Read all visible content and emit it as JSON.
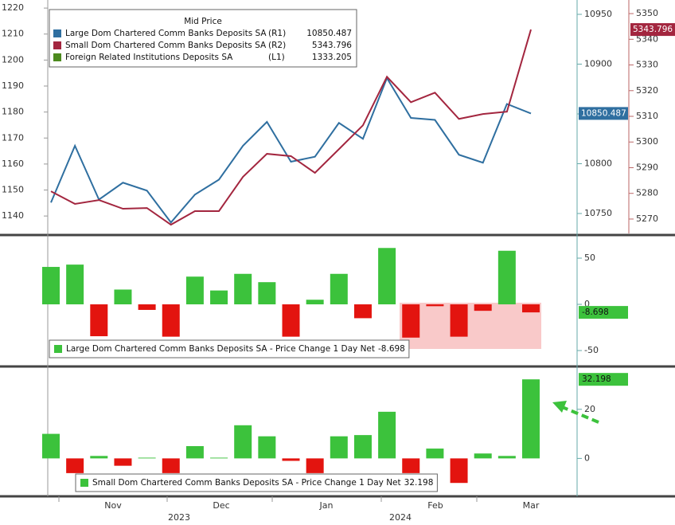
{
  "chart_data": [
    {
      "type": "line",
      "title": "Mid Price",
      "ylim": [
        1133.3,
        1223.1
      ],
      "yticks": [
        1140,
        1150,
        1160,
        1170,
        1180,
        1190,
        1200,
        1210,
        1220
      ],
      "y2lim": [
        10730,
        10964.4
      ],
      "y2ticks": [
        10750,
        10800,
        10850,
        10900,
        10950
      ],
      "y3lim": [
        5264.4,
        5355.3
      ],
      "y3ticks": [
        5270,
        5280,
        5290,
        5300,
        5310,
        5320,
        5330,
        5340,
        5350
      ],
      "series": [
        {
          "name": "Large Dom Chartered Comm Banks Deposits SA",
          "axis_label": "(R1)",
          "axis": "y2",
          "color": "#2f6fa0",
          "values": [
            10761,
            10818,
            10764,
            10781,
            10773,
            10741,
            10769,
            10784,
            10818,
            10842,
            10802,
            10807,
            10841,
            10825,
            10886,
            10846,
            10844,
            10809,
            10801,
            10860,
            10850.487
          ]
        },
        {
          "name": "Small Dom Chartered Comm Banks Deposits SA",
          "axis_label": "(R2)",
          "axis": "y3",
          "color": "#a3263f",
          "values": [
            5280.8,
            5275.9,
            5277.4,
            5274.0,
            5274.3,
            5267.8,
            5273.1,
            5273.1,
            5286.4,
            5295.4,
            5294.5,
            5288.0,
            5297.2,
            5306.5,
            5325.4,
            5315.5,
            5319.2,
            5309.0,
            5310.9,
            5311.8,
            5343.796
          ]
        },
        {
          "name": "Foreign Related Institutions Deposits SA",
          "axis_label": "(L1)",
          "axis": "y",
          "color": "#4c8a1e",
          "last": 1333.205
        }
      ]
    },
    {
      "type": "bar",
      "name": "Large Dom Chartered Comm Banks Deposits SA - Price Change 1 Day Net",
      "color": "#3cc23c",
      "negative_color": "#e3140f",
      "ylim": [
        -65.5,
        73.3
      ],
      "yticks": [
        50,
        0,
        -50
      ],
      "values": [
        40.5,
        43,
        -34.5,
        16,
        -6,
        -35,
        30,
        15,
        33,
        24,
        -35,
        5,
        33,
        -15,
        61,
        -36,
        -2,
        -35,
        -7,
        58,
        -8.698
      ]
    },
    {
      "type": "bar",
      "name": "Small Dom Chartered Comm Banks Deposits SA - Price Change 1 Day Net",
      "color": "#3cc23c",
      "negative_color": "#e3140f",
      "ylim": [
        -14.8,
        36.8
      ],
      "yticks": [
        20,
        0
      ],
      "values": [
        10,
        -6,
        1,
        -3,
        0.3,
        -6,
        5,
        0.3,
        13.5,
        9,
        -1,
        -6,
        9,
        9.5,
        19,
        -6,
        4,
        -10,
        2,
        1,
        32.198
      ]
    }
  ],
  "x_axis": {
    "months": [
      "Nov",
      "Dec",
      "Jan",
      "Feb",
      "Mar"
    ],
    "years": [
      "2023",
      "2024"
    ]
  }
}
